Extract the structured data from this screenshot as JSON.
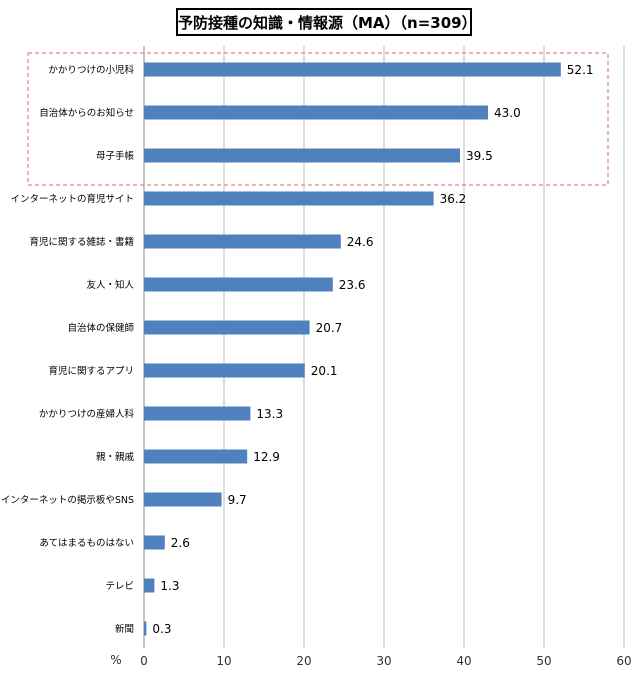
{
  "chart_data": {
    "type": "bar",
    "orientation": "horizontal",
    "title": "予防接種の知識・情報源（MA）（n=309）",
    "unit_label": "%",
    "categories": [
      "かかりつけの小児科",
      "自治体からのお知らせ",
      "母子手帳",
      "インターネットの育児サイト",
      "育児に関する雑誌・書籍",
      "友人・知人",
      "自治体の保健師",
      "育児に関するアプリ",
      "かかりつけの産婦人科",
      "親・親戚",
      "インターネットの掲示板やSNS",
      "あてはまるものはない",
      "テレビ",
      "新聞"
    ],
    "values": [
      52.1,
      43.0,
      39.5,
      36.2,
      24.6,
      23.6,
      20.7,
      20.1,
      13.3,
      12.9,
      9.7,
      2.6,
      1.3,
      0.3
    ],
    "value_labels": [
      "52.1",
      "43.0",
      "39.5",
      "36.2",
      "24.6",
      "23.6",
      "20.7",
      "20.1",
      "13.3",
      "12.9",
      "9.7",
      "2.6",
      "1.3",
      "0.3"
    ],
    "xlim": [
      0,
      60
    ],
    "x_ticks": [
      "0",
      "10",
      "20",
      "30",
      "40",
      "50",
      "60"
    ],
    "grid": true,
    "bar_color": "#4f81bd",
    "highlight": {
      "first_n": 3,
      "border_color": "#e06666",
      "style": "dashed"
    }
  }
}
